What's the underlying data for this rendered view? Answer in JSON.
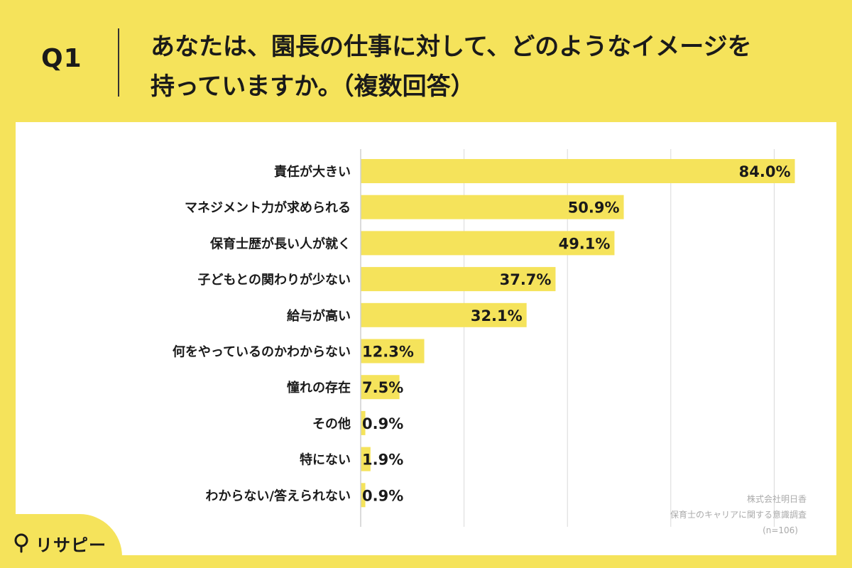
{
  "header": {
    "question_number": "Q1",
    "title_line1": "あなたは、園長の仕事に対して、どのようなイメージを",
    "title_line2": "持っていますか。（複数回答）"
  },
  "chart_data": {
    "type": "bar",
    "orientation": "horizontal",
    "categories": [
      "責任が大きい",
      "マネジメント力が求められる",
      "保育士歴が長い人が就く",
      "子どもとの関わりが少ない",
      "給与が高い",
      "何をやっているのかわからない",
      "憧れの存在",
      "その他",
      "特にない",
      "わからない/答えられない"
    ],
    "values": [
      84.0,
      50.9,
      49.1,
      37.7,
      32.1,
      12.3,
      7.5,
      0.9,
      1.9,
      0.9
    ],
    "value_labels": [
      "84.0%",
      "50.9%",
      "49.1%",
      "37.7%",
      "32.1%",
      "12.3%",
      "7.5%",
      "0.9%",
      "1.9%",
      "0.9%"
    ],
    "xlim": [
      0,
      100
    ],
    "grid": true,
    "bar_color": "#f5e35b"
  },
  "credits": {
    "company": "株式会社明日香",
    "survey": "保育士のキャリアに関する意識調査",
    "sample": "(n=106)"
  },
  "logo": {
    "text": "リサピー"
  }
}
